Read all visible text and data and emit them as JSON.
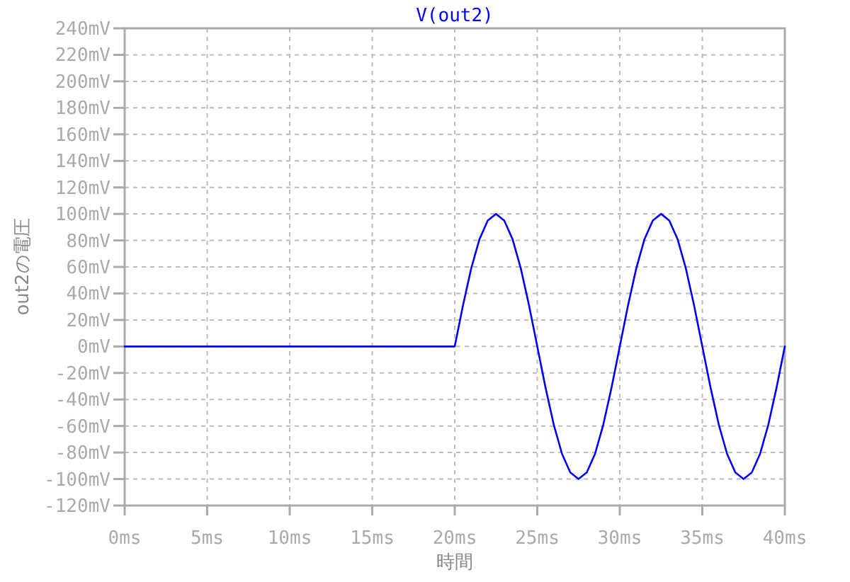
{
  "chart_data": {
    "type": "line",
    "title": "V(out2)",
    "xlabel": "時間",
    "ylabel": "out2の電圧",
    "grid": true,
    "xlim": [
      0,
      40
    ],
    "ylim": [
      -120,
      240
    ],
    "xticks": [
      {
        "value": 0,
        "label": "0ms"
      },
      {
        "value": 5,
        "label": "5ms"
      },
      {
        "value": 10,
        "label": "10ms"
      },
      {
        "value": 15,
        "label": "15ms"
      },
      {
        "value": 20,
        "label": "20ms"
      },
      {
        "value": 25,
        "label": "25ms"
      },
      {
        "value": 30,
        "label": "30ms"
      },
      {
        "value": 35,
        "label": "35ms"
      },
      {
        "value": 40,
        "label": "40ms"
      }
    ],
    "yticks": [
      {
        "value": -120,
        "label": "-120mV"
      },
      {
        "value": -100,
        "label": "-100mV"
      },
      {
        "value": -80,
        "label": "-80mV"
      },
      {
        "value": -60,
        "label": "-60mV"
      },
      {
        "value": -40,
        "label": "-40mV"
      },
      {
        "value": -20,
        "label": "-20mV"
      },
      {
        "value": 0,
        "label": "0mV"
      },
      {
        "value": 20,
        "label": "20mV"
      },
      {
        "value": 40,
        "label": "40mV"
      },
      {
        "value": 60,
        "label": "60mV"
      },
      {
        "value": 80,
        "label": "80mV"
      },
      {
        "value": 100,
        "label": "100mV"
      },
      {
        "value": 120,
        "label": "120mV"
      },
      {
        "value": 140,
        "label": "140mV"
      },
      {
        "value": 160,
        "label": "160mV"
      },
      {
        "value": 180,
        "label": "180mV"
      },
      {
        "value": 200,
        "label": "200mV"
      },
      {
        "value": 220,
        "label": "220mV"
      },
      {
        "value": 240,
        "label": "240mV"
      }
    ],
    "series": [
      {
        "color": "#0000ff",
        "x": [
          0,
          20,
          20.5,
          21,
          21.5,
          22,
          22.5,
          23,
          23.5,
          24,
          24.5,
          25,
          25.5,
          26,
          26.5,
          27,
          27.5,
          28,
          28.5,
          29,
          29.5,
          30,
          30.5,
          31,
          31.5,
          32,
          32.5,
          33,
          33.5,
          34,
          34.5,
          35,
          35.5,
          36,
          36.5,
          37,
          37.5,
          38,
          38.5,
          39,
          39.5,
          40
        ],
        "values": [
          0,
          0,
          31,
          59,
          81,
          95,
          100,
          95,
          81,
          59,
          31,
          0,
          -31,
          -59,
          -81,
          -95,
          -100,
          -95,
          -81,
          -59,
          -31,
          0,
          31,
          59,
          81,
          95,
          100,
          95,
          81,
          59,
          31,
          0,
          -31,
          -59,
          -81,
          -95,
          -100,
          -95,
          -81,
          -59,
          -31,
          0
        ]
      }
    ]
  }
}
